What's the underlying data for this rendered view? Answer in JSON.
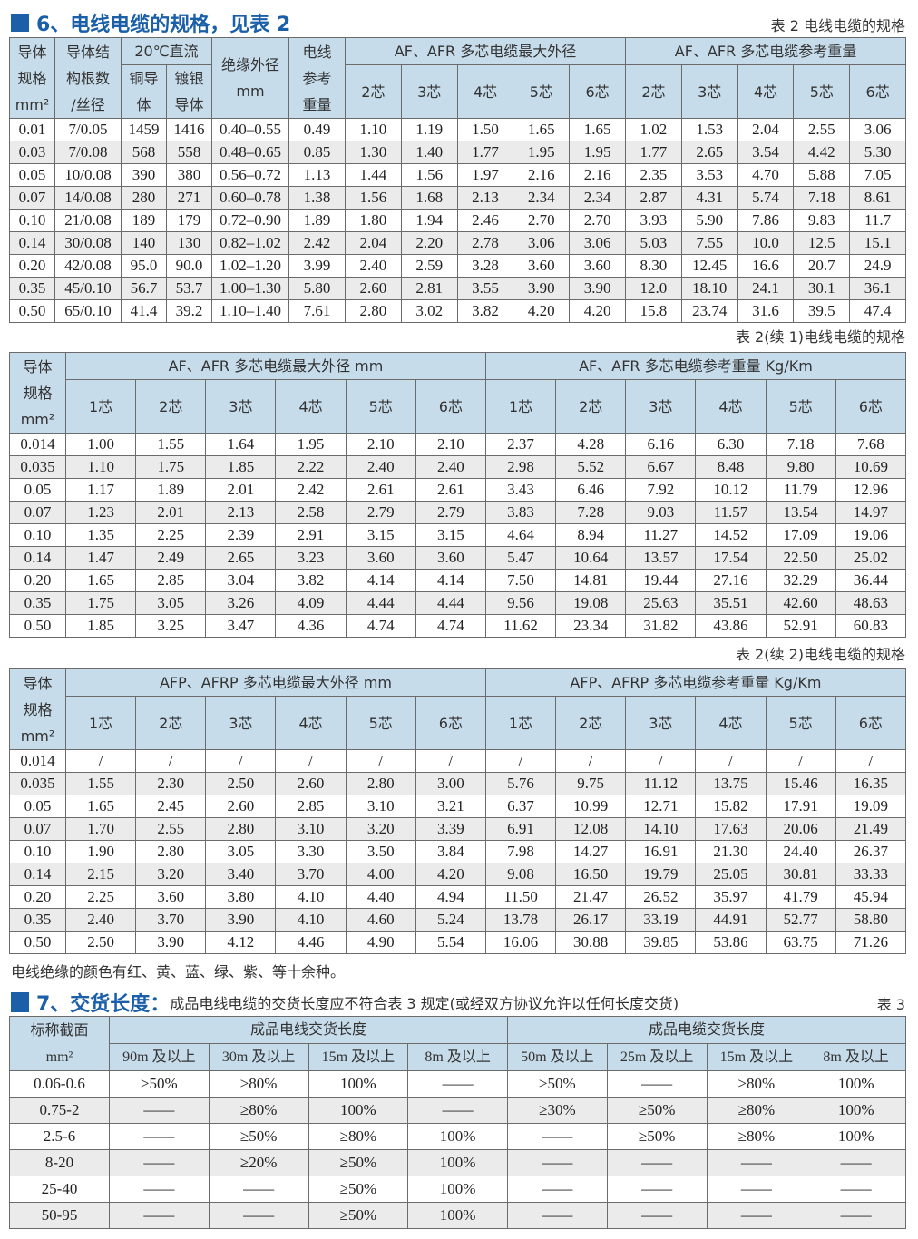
{
  "section6": {
    "number_title": "6、电线电缆的规格，见表 2",
    "caption": "表 2 电线电缆的规格"
  },
  "table2": {
    "headers": {
      "spec": [
        "导体",
        "规格",
        "mm²"
      ],
      "structure": [
        "导体结",
        "构根数",
        "/丝径"
      ],
      "dc": "20℃直流",
      "copper": [
        "铜导",
        "体"
      ],
      "silver": [
        "镀银",
        "导体"
      ],
      "insul": [
        "绝缘外径",
        "mm"
      ],
      "wire_weight": [
        "电线",
        "参考",
        "重量"
      ],
      "od_group": "AF、AFR 多芯电缆最大外径",
      "wt_group": "AF、AFR 多芯电缆参考重量",
      "cores": [
        "2芯",
        "3芯",
        "4芯",
        "5芯",
        "6芯"
      ]
    },
    "rows": [
      [
        "0.01",
        "7/0.05",
        "1459",
        "1416",
        "0.40–0.55",
        "0.49",
        "1.10",
        "1.19",
        "1.50",
        "1.65",
        "1.65",
        "1.02",
        "1.53",
        "2.04",
        "2.55",
        "3.06"
      ],
      [
        "0.03",
        "7/0.08",
        "568",
        "558",
        "0.48–0.65",
        "0.85",
        "1.30",
        "1.40",
        "1.77",
        "1.95",
        "1.95",
        "1.77",
        "2.65",
        "3.54",
        "4.42",
        "5.30"
      ],
      [
        "0.05",
        "10/0.08",
        "390",
        "380",
        "0.56–0.72",
        "1.13",
        "1.44",
        "1.56",
        "1.97",
        "2.16",
        "2.16",
        "2.35",
        "3.53",
        "4.70",
        "5.88",
        "7.05"
      ],
      [
        "0.07",
        "14/0.08",
        "280",
        "271",
        "0.60–0.78",
        "1.38",
        "1.56",
        "1.68",
        "2.13",
        "2.34",
        "2.34",
        "2.87",
        "4.31",
        "5.74",
        "7.18",
        "8.61"
      ],
      [
        "0.10",
        "21/0.08",
        "189",
        "179",
        "0.72–0.90",
        "1.89",
        "1.80",
        "1.94",
        "2.46",
        "2.70",
        "2.70",
        "3.93",
        "5.90",
        "7.86",
        "9.83",
        "11.7"
      ],
      [
        "0.14",
        "30/0.08",
        "140",
        "130",
        "0.82–1.02",
        "2.42",
        "2.04",
        "2.20",
        "2.78",
        "3.06",
        "3.06",
        "5.03",
        "7.55",
        "10.0",
        "12.5",
        "15.1"
      ],
      [
        "0.20",
        "42/0.08",
        "95.0",
        "90.0",
        "1.02–1.20",
        "3.99",
        "2.40",
        "2.59",
        "3.28",
        "3.60",
        "3.60",
        "8.30",
        "12.45",
        "16.6",
        "20.7",
        "24.9"
      ],
      [
        "0.35",
        "45/0.10",
        "56.7",
        "53.7",
        "1.00–1.30",
        "5.80",
        "2.60",
        "2.81",
        "3.55",
        "3.90",
        "3.90",
        "12.0",
        "18.10",
        "24.1",
        "30.1",
        "36.1"
      ],
      [
        "0.50",
        "65/0.10",
        "41.4",
        "39.2",
        "1.10–1.40",
        "7.61",
        "2.80",
        "3.02",
        "3.82",
        "4.20",
        "4.20",
        "15.8",
        "23.74",
        "31.6",
        "39.5",
        "47.4"
      ]
    ]
  },
  "table2c1": {
    "caption": "表 2(续 1)电线电缆的规格",
    "headers": {
      "spec": [
        "导体",
        "规格",
        "mm²"
      ],
      "od_group": "AF、AFR 多芯电缆最大外径 mm",
      "wt_group": "AF、AFR 多芯电缆参考重量 Kg/Km",
      "cores": [
        "1芯",
        "2芯",
        "3芯",
        "4芯",
        "5芯",
        "6芯"
      ]
    },
    "rows": [
      [
        "0.014",
        "1.00",
        "1.55",
        "1.64",
        "1.95",
        "2.10",
        "2.10",
        "2.37",
        "4.28",
        "6.16",
        "6.30",
        "7.18",
        "7.68"
      ],
      [
        "0.035",
        "1.10",
        "1.75",
        "1.85",
        "2.22",
        "2.40",
        "2.40",
        "2.98",
        "5.52",
        "6.67",
        "8.48",
        "9.80",
        "10.69"
      ],
      [
        "0.05",
        "1.17",
        "1.89",
        "2.01",
        "2.42",
        "2.61",
        "2.61",
        "3.43",
        "6.46",
        "7.92",
        "10.12",
        "11.79",
        "12.96"
      ],
      [
        "0.07",
        "1.23",
        "2.01",
        "2.13",
        "2.58",
        "2.79",
        "2.79",
        "3.83",
        "7.28",
        "9.03",
        "11.57",
        "13.54",
        "14.97"
      ],
      [
        "0.10",
        "1.35",
        "2.25",
        "2.39",
        "2.91",
        "3.15",
        "3.15",
        "4.64",
        "8.94",
        "11.27",
        "14.52",
        "17.09",
        "19.06"
      ],
      [
        "0.14",
        "1.47",
        "2.49",
        "2.65",
        "3.23",
        "3.60",
        "3.60",
        "5.47",
        "10.64",
        "13.57",
        "17.54",
        "22.50",
        "25.02"
      ],
      [
        "0.20",
        "1.65",
        "2.85",
        "3.04",
        "3.82",
        "4.14",
        "4.14",
        "7.50",
        "14.81",
        "19.44",
        "27.16",
        "32.29",
        "36.44"
      ],
      [
        "0.35",
        "1.75",
        "3.05",
        "3.26",
        "4.09",
        "4.44",
        "4.44",
        "9.56",
        "19.08",
        "25.63",
        "35.51",
        "42.60",
        "48.63"
      ],
      [
        "0.50",
        "1.85",
        "3.25",
        "3.47",
        "4.36",
        "4.74",
        "4.74",
        "11.62",
        "23.34",
        "31.82",
        "43.86",
        "52.91",
        "60.83"
      ]
    ]
  },
  "table2c2": {
    "caption": "表 2(续 2)电线电缆的规格",
    "headers": {
      "spec": [
        "导体",
        "规格",
        "mm²"
      ],
      "od_group": "AFP、AFRP 多芯电缆最大外径 mm",
      "wt_group": "AFP、AFRP 多芯电缆参考重量 Kg/Km",
      "cores": [
        "1芯",
        "2芯",
        "3芯",
        "4芯",
        "5芯",
        "6芯"
      ]
    },
    "rows": [
      [
        "0.014",
        "/",
        "/",
        "/",
        "/",
        "/",
        "/",
        "/",
        "/",
        "/",
        "/",
        "/",
        "/"
      ],
      [
        "0.035",
        "1.55",
        "2.30",
        "2.50",
        "2.60",
        "2.80",
        "3.00",
        "5.76",
        "9.75",
        "11.12",
        "13.75",
        "15.46",
        "16.35"
      ],
      [
        "0.05",
        "1.65",
        "2.45",
        "2.60",
        "2.85",
        "3.10",
        "3.21",
        "6.37",
        "10.99",
        "12.71",
        "15.82",
        "17.91",
        "19.09"
      ],
      [
        "0.07",
        "1.70",
        "2.55",
        "2.80",
        "3.10",
        "3.20",
        "3.39",
        "6.91",
        "12.08",
        "14.10",
        "17.63",
        "20.06",
        "21.49"
      ],
      [
        "0.10",
        "1.90",
        "2.80",
        "3.05",
        "3.30",
        "3.50",
        "3.84",
        "7.98",
        "14.27",
        "16.91",
        "21.30",
        "24.40",
        "26.37"
      ],
      [
        "0.14",
        "2.15",
        "3.20",
        "3.40",
        "3.70",
        "4.00",
        "4.20",
        "9.08",
        "16.50",
        "19.79",
        "25.05",
        "30.81",
        "33.33"
      ],
      [
        "0.20",
        "2.25",
        "3.60",
        "3.80",
        "4.10",
        "4.40",
        "4.94",
        "11.50",
        "21.47",
        "26.52",
        "35.97",
        "41.79",
        "45.94"
      ],
      [
        "0.35",
        "2.40",
        "3.70",
        "3.90",
        "4.10",
        "4.60",
        "5.24",
        "13.78",
        "26.17",
        "33.19",
        "44.91",
        "52.77",
        "58.80"
      ],
      [
        "0.50",
        "2.50",
        "3.90",
        "4.12",
        "4.46",
        "4.90",
        "5.54",
        "16.06",
        "30.88",
        "39.85",
        "53.86",
        "63.75",
        "71.26"
      ]
    ]
  },
  "note": "电线绝缘的颜色有红、黄、蓝、绿、紫、等十余种。",
  "section7": {
    "number_title": "7、交货长度：",
    "subtitle": "成品电线电缆的交货长度应不符合表 3 规定(或经双方协议允许以任何长度交货)",
    "caption": "表 3"
  },
  "table3": {
    "headers": {
      "spec": [
        "标称截面",
        "mm²"
      ],
      "wire_group": "成品电线交货长度",
      "cable_group": "成品电缆交货长度",
      "wire_cols": [
        "90m 及以上",
        "30m 及以上",
        "15m 及以上",
        "8m 及以上"
      ],
      "cable_cols": [
        "50m 及以上",
        "25m 及以上",
        "15m 及以上",
        "8m 及以上"
      ]
    },
    "rows": [
      [
        "0.06-0.6",
        "≥50%",
        "≥80%",
        "100%",
        "——",
        "≥50%",
        "——",
        "≥80%",
        "100%"
      ],
      [
        "0.75-2",
        "——",
        "≥80%",
        "100%",
        "——",
        "≥30%",
        "≥50%",
        "≥80%",
        "100%"
      ],
      [
        "2.5-6",
        "——",
        "≥50%",
        "≥80%",
        "100%",
        "——",
        "≥50%",
        "≥80%",
        "100%"
      ],
      [
        "8-20",
        "——",
        "≥20%",
        "≥50%",
        "100%",
        "——",
        "——",
        "——",
        "——"
      ],
      [
        "25-40",
        "——",
        "——",
        "≥50%",
        "100%",
        "——",
        "——",
        "——",
        "——"
      ],
      [
        "50-95",
        "——",
        "——",
        "≥50%",
        "100%",
        "——",
        "——",
        "——",
        "——"
      ]
    ]
  },
  "colors": {
    "accent": "#1a5fa8",
    "header_bg": "#c7dcea",
    "alt_row": "#ebebeb",
    "border": "#6b6b6b"
  }
}
